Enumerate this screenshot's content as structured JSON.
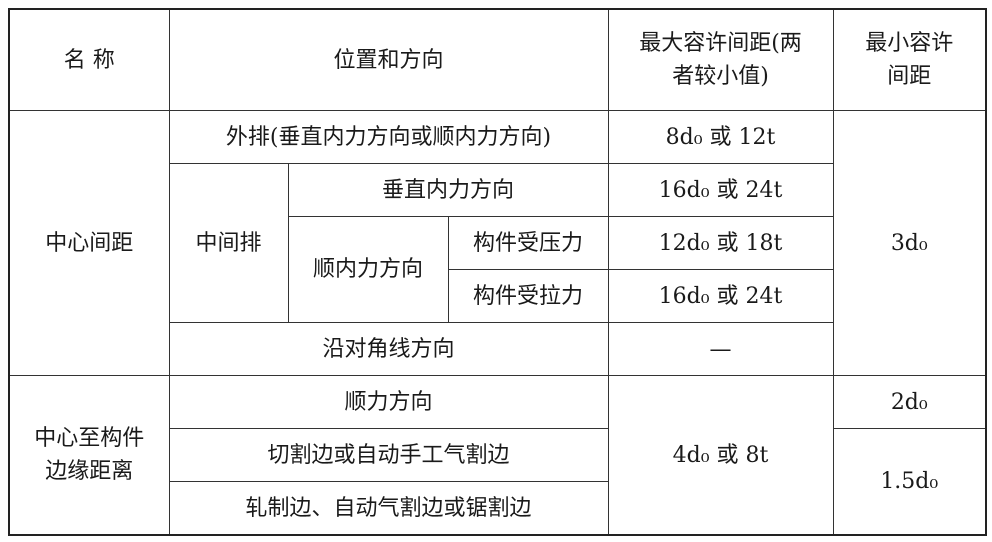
{
  "table": {
    "header": [
      "名 称",
      "位置和方向",
      "最大容许间距(两者较小值)",
      "最小容许间距"
    ],
    "rows": [
      [
        "中心间距",
        "外排(垂直内力方向或顺内力方向)",
        "8d₀ 或 12t",
        "3d₀"
      ],
      [
        "中间排",
        "垂直内力方向",
        "16d₀ 或 24t"
      ],
      [
        "顺内力方向",
        "构件受压力",
        "12d₀ 或 18t"
      ],
      [
        "构件受拉力",
        "16d₀ 或 24t"
      ],
      [
        "沿对角线方向",
        "—"
      ],
      [
        "中心至构件边缘距离",
        "顺力方向",
        "4d₀ 或 8t",
        "2d₀"
      ],
      [
        "切割边或自动手工气割边",
        "1.5d₀"
      ],
      [
        "轧制边、自动气割边或锯割边"
      ]
    ]
  }
}
